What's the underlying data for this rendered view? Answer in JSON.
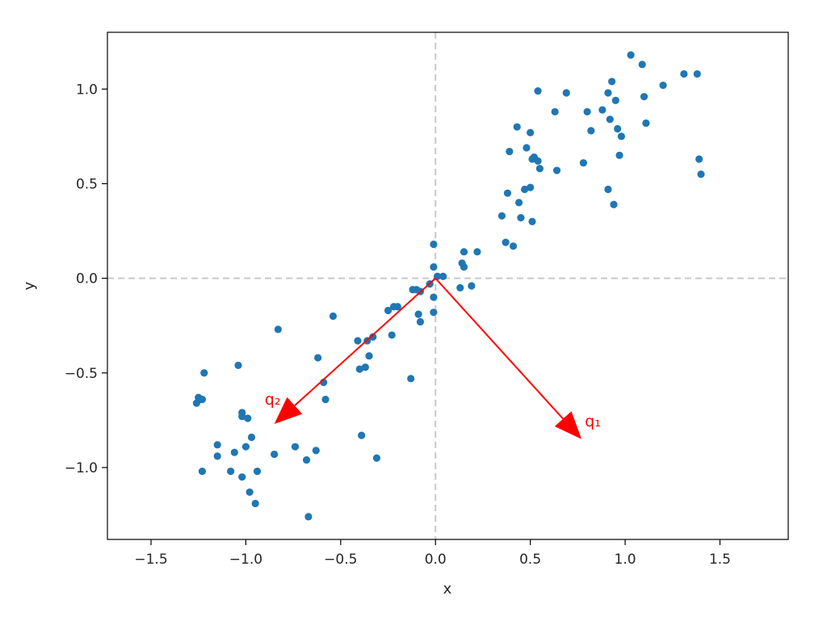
{
  "chart_data": {
    "type": "scatter",
    "title": "",
    "xlabel": "x",
    "ylabel": "y",
    "xlim": [
      -1.73,
      1.86
    ],
    "ylim": [
      -1.38,
      1.3
    ],
    "xticks": [
      -1.5,
      -1.0,
      -0.5,
      0.0,
      0.5,
      1.0,
      1.5
    ],
    "yticks": [
      -1.0,
      -0.5,
      0.0,
      0.5,
      1.0
    ],
    "xtick_labels": [
      "−1.5",
      "−1.0",
      "−0.5",
      "0.0",
      "0.5",
      "1.0",
      "1.5"
    ],
    "ytick_labels": [
      "−1.0",
      "−0.5",
      "0.0",
      "0.5",
      "1.0"
    ],
    "grid": false,
    "reference_lines": {
      "x": 0.0,
      "y": 0.0,
      "style": "dashed",
      "color": "#c8c8c8"
    },
    "point_color": "#1f77b4",
    "series": [
      {
        "x": [
          -1.26,
          -1.25,
          -1.23,
          -1.24,
          -1.22,
          -1.23,
          -1.15,
          -1.15,
          -1.06,
          -1.08,
          -1.04,
          -1.02,
          -1.02,
          -1.0,
          -1.02,
          -0.99,
          -0.97,
          -0.98,
          -0.94,
          -0.95,
          -0.85,
          -0.83,
          -0.8,
          -0.74,
          -0.68,
          -0.67,
          -0.63,
          -0.62,
          -0.59,
          -0.58,
          -0.54,
          -0.41,
          -0.4,
          -0.39,
          -0.37,
          -0.36,
          -0.35,
          -0.33,
          -0.31,
          -0.25,
          -0.23,
          -0.22,
          -0.2,
          -0.13,
          -0.12,
          -0.1,
          -0.09,
          -0.08,
          -0.08,
          -0.03,
          -0.01,
          -0.01,
          -0.01,
          -0.01,
          0.01,
          0.04,
          0.13,
          0.14,
          0.15,
          0.15,
          0.19,
          0.22,
          0.35,
          0.37,
          0.38,
          0.39,
          0.41,
          0.43,
          0.44,
          0.45,
          0.47,
          0.48,
          0.5,
          0.5,
          0.51,
          0.51,
          0.52,
          0.54,
          0.54,
          0.55,
          0.63,
          0.64,
          0.69,
          0.78,
          0.8,
          0.82,
          0.88,
          0.91,
          0.91,
          0.92,
          0.93,
          0.94,
          0.95,
          0.96,
          0.97,
          0.98,
          1.03,
          1.09,
          1.1,
          1.11,
          1.2,
          1.31,
          1.38,
          1.39,
          1.4
        ],
        "y": [
          -0.66,
          -0.63,
          -1.02,
          -0.64,
          -0.5,
          -0.64,
          -0.88,
          -0.94,
          -0.92,
          -1.02,
          -0.46,
          -0.71,
          -0.73,
          -0.89,
          -1.05,
          -0.74,
          -0.84,
          -1.13,
          -1.02,
          -1.19,
          -0.93,
          -0.27,
          -0.73,
          -0.89,
          -0.96,
          -1.26,
          -0.91,
          -0.42,
          -0.55,
          -0.64,
          -0.2,
          -0.33,
          -0.48,
          -0.83,
          -0.47,
          -0.33,
          -0.41,
          -0.31,
          -0.95,
          -0.17,
          -0.3,
          -0.15,
          -0.15,
          -0.53,
          -0.06,
          -0.06,
          -0.19,
          -0.23,
          -0.07,
          -0.03,
          -0.18,
          -0.1,
          0.18,
          0.06,
          0.01,
          0.01,
          -0.05,
          0.08,
          0.14,
          0.06,
          -0.04,
          0.14,
          0.33,
          0.19,
          0.45,
          0.67,
          0.17,
          0.8,
          0.4,
          0.32,
          0.47,
          0.69,
          0.48,
          0.77,
          0.3,
          0.63,
          0.64,
          0.99,
          0.62,
          0.58,
          0.88,
          0.57,
          0.98,
          0.61,
          0.88,
          0.78,
          0.89,
          0.47,
          0.98,
          0.84,
          1.04,
          0.39,
          0.94,
          0.79,
          0.65,
          0.75,
          1.18,
          1.13,
          0.96,
          0.82,
          1.02,
          1.08,
          1.08,
          0.63,
          0.55
        ]
      }
    ],
    "vectors": [
      {
        "label": "q₂",
        "from": [
          0.0,
          0.0
        ],
        "to": [
          -0.85,
          -0.77
        ],
        "color": "#ff0000"
      },
      {
        "label": "q₁",
        "from": [
          0.0,
          0.0
        ],
        "to": [
          0.77,
          -0.85
        ],
        "color": "#ff0000"
      }
    ]
  }
}
